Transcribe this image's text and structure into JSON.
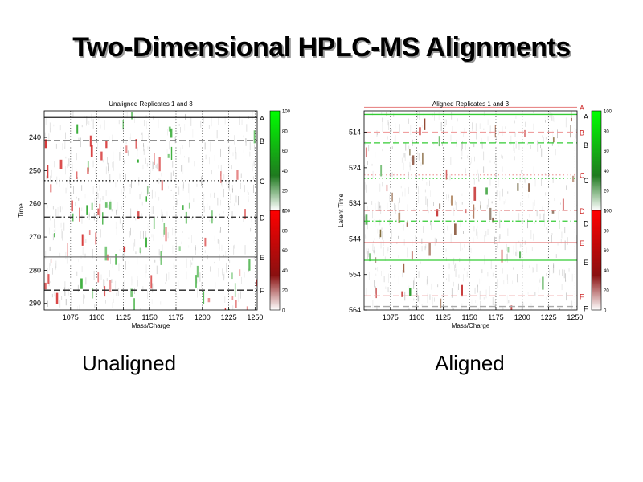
{
  "title": "Two-Dimensional HPLC-MS Alignments",
  "captions": {
    "left": "Unaligned",
    "right": "Aligned"
  },
  "chart_data": [
    {
      "type": "heatmap",
      "title": "Unaligned Replicates 1 and 3",
      "xlabel": "Mass/Charge",
      "ylabel": "Time",
      "xlim": [
        1050,
        1252
      ],
      "ylim": [
        232,
        292
      ],
      "y_inverted": true,
      "xticks": [
        1075,
        1100,
        1125,
        1150,
        1175,
        1200,
        1225,
        1250
      ],
      "yticks": [
        240,
        250,
        260,
        270,
        280,
        290
      ],
      "grid": "dotted vertical",
      "lines": [
        {
          "label": "A",
          "value": 234,
          "style": "solid",
          "color": "#222222"
        },
        {
          "label": "B",
          "value": 241,
          "style": "dashed",
          "color": "#222222"
        },
        {
          "label": "C",
          "value": 253,
          "style": "dotted",
          "color": "#222222"
        },
        {
          "label": "D",
          "value": 264,
          "style": "dashdot",
          "color": "#222222"
        },
        {
          "label": "E",
          "value": 276,
          "style": "solid",
          "color": "#777777"
        },
        {
          "label": "F",
          "value": 286,
          "style": "dashed",
          "color": "#222222"
        }
      ],
      "colorbar": {
        "green": {
          "ticks": [
            0,
            20,
            40,
            60,
            80,
            100
          ]
        },
        "red": {
          "ticks": [
            0,
            20,
            40,
            60,
            80,
            100
          ]
        }
      },
      "label_color": "#000000"
    },
    {
      "type": "heatmap",
      "title": "Aligned Replicates 1 and 3",
      "xlabel": "Mass/Charge",
      "ylabel": "Latent Time",
      "xlim": [
        1050,
        1252
      ],
      "ylim": [
        508,
        564
      ],
      "y_inverted": true,
      "xticks": [
        1075,
        1100,
        1125,
        1150,
        1175,
        1200,
        1225,
        1250
      ],
      "yticks": [
        514,
        524,
        534,
        544,
        554,
        564
      ],
      "grid": "dotted vertical",
      "lines": [
        {
          "label": "A",
          "value": 507,
          "style": "solid",
          "color": "#e88a8a",
          "pair": 509,
          "pair_color": "#33cc33"
        },
        {
          "label": "B",
          "value": 514,
          "style": "dashed",
          "color": "#f0a0a0",
          "pair": 517,
          "pair_color": "#33cc33"
        },
        {
          "label": "C",
          "value": 526,
          "style": "dotted",
          "color": "#f0a0a0",
          "pair": 527,
          "pair_color": "#33cc33"
        },
        {
          "label": "D",
          "value": 536,
          "style": "dashdot",
          "color": "#e08080",
          "pair": 539,
          "pair_color": "#33cc33"
        },
        {
          "label": "E",
          "value": 545,
          "style": "solid",
          "color": "#e89090",
          "pair": 550,
          "pair_color": "#33cc33"
        },
        {
          "label": "F",
          "value": 560,
          "style": "dashed",
          "color": "#f0a0a0",
          "pair": 563,
          "pair_color": "#aaaaaa"
        }
      ],
      "colorbar": {
        "green": {
          "ticks": [
            0,
            20,
            40,
            60,
            80,
            100
          ]
        },
        "red": {
          "ticks": [
            0,
            20,
            40,
            60,
            80,
            100
          ]
        }
      },
      "label_color": "#cc2222"
    }
  ]
}
